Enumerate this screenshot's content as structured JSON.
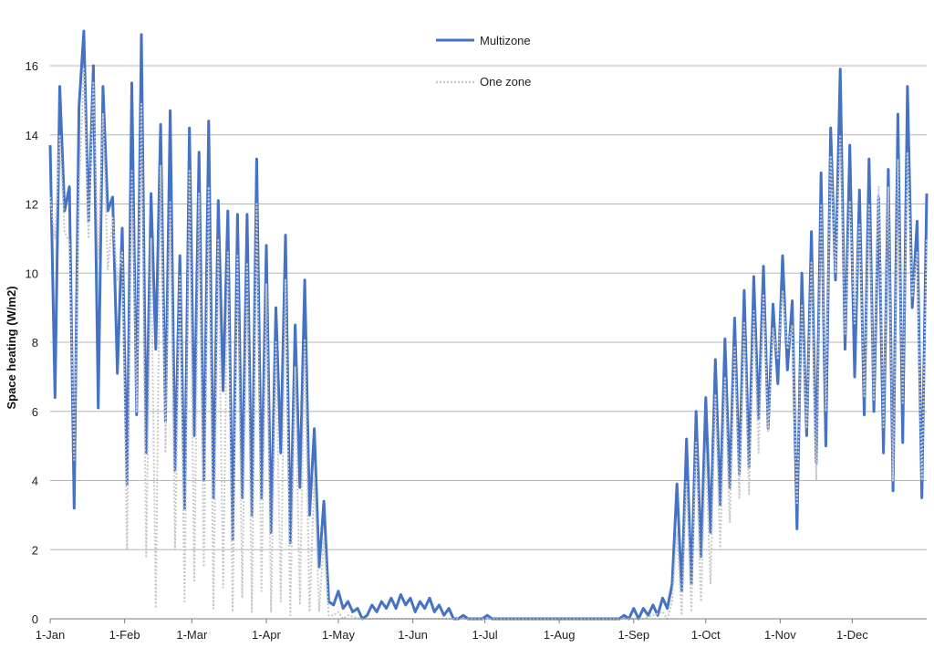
{
  "chart_data": {
    "type": "line",
    "title": "",
    "xlabel": "",
    "ylabel": "Space heating  (W/m2)",
    "ylim": [
      0,
      16
    ],
    "y_ticks": [
      "0",
      "2",
      "4",
      "6",
      "8",
      "10",
      "12",
      "14",
      "16"
    ],
    "x_ticks": [
      "1-Jan",
      "1-Feb",
      "1-Mar",
      "1-Apr",
      "1-May",
      "1-Jun",
      "1-Jul",
      "1-Aug",
      "1-Sep",
      "1-Oct",
      "1-Nov",
      "1-Dec"
    ],
    "x_tick_days": [
      1,
      32,
      60,
      91,
      121,
      152,
      182,
      213,
      244,
      274,
      305,
      335
    ],
    "xlim_days": [
      1,
      366
    ],
    "grid": "horizontal",
    "legend_position": "top-center",
    "series": [
      {
        "name": "Multizone",
        "color": "#4472C4",
        "style": "solid",
        "points": [
          [
            1,
            13.7
          ],
          [
            3,
            6.4
          ],
          [
            5,
            15.4
          ],
          [
            7,
            11.8
          ],
          [
            9,
            12.5
          ],
          [
            11,
            3.2
          ],
          [
            13,
            14.8
          ],
          [
            15,
            17.0
          ],
          [
            17,
            11.5
          ],
          [
            19,
            16.0
          ],
          [
            21,
            6.1
          ],
          [
            23,
            15.4
          ],
          [
            25,
            11.8
          ],
          [
            27,
            12.2
          ],
          [
            29,
            7.1
          ],
          [
            31,
            11.3
          ],
          [
            33,
            3.9
          ],
          [
            35,
            15.5
          ],
          [
            37,
            5.9
          ],
          [
            39,
            16.9
          ],
          [
            41,
            4.8
          ],
          [
            43,
            12.3
          ],
          [
            45,
            7.8
          ],
          [
            47,
            14.3
          ],
          [
            49,
            5.7
          ],
          [
            51,
            14.7
          ],
          [
            53,
            4.3
          ],
          [
            55,
            10.5
          ],
          [
            57,
            3.2
          ],
          [
            59,
            14.2
          ],
          [
            61,
            5.3
          ],
          [
            63,
            13.5
          ],
          [
            65,
            4.0
          ],
          [
            67,
            14.4
          ],
          [
            69,
            3.5
          ],
          [
            71,
            12.1
          ],
          [
            73,
            6.6
          ],
          [
            75,
            11.8
          ],
          [
            77,
            2.3
          ],
          [
            79,
            11.7
          ],
          [
            81,
            3.5
          ],
          [
            83,
            11.7
          ],
          [
            85,
            3.0
          ],
          [
            87,
            13.3
          ],
          [
            89,
            3.5
          ],
          [
            91,
            10.8
          ],
          [
            93,
            2.5
          ],
          [
            95,
            9.0
          ],
          [
            97,
            4.8
          ],
          [
            99,
            11.1
          ],
          [
            101,
            2.2
          ],
          [
            103,
            8.5
          ],
          [
            105,
            3.8
          ],
          [
            107,
            9.8
          ],
          [
            109,
            3.0
          ],
          [
            111,
            5.5
          ],
          [
            113,
            1.5
          ],
          [
            115,
            3.4
          ],
          [
            117,
            0.5
          ],
          [
            119,
            0.4
          ],
          [
            121,
            0.8
          ],
          [
            123,
            0.3
          ],
          [
            125,
            0.5
          ],
          [
            127,
            0.2
          ],
          [
            129,
            0.3
          ],
          [
            131,
            0.0
          ],
          [
            133,
            0.1
          ],
          [
            135,
            0.4
          ],
          [
            137,
            0.2
          ],
          [
            139,
            0.5
          ],
          [
            141,
            0.3
          ],
          [
            143,
            0.6
          ],
          [
            145,
            0.3
          ],
          [
            147,
            0.7
          ],
          [
            149,
            0.4
          ],
          [
            151,
            0.6
          ],
          [
            153,
            0.2
          ],
          [
            155,
            0.5
          ],
          [
            157,
            0.3
          ],
          [
            159,
            0.6
          ],
          [
            161,
            0.2
          ],
          [
            163,
            0.4
          ],
          [
            165,
            0.1
          ],
          [
            167,
            0.3
          ],
          [
            169,
            0.0
          ],
          [
            171,
            0.0
          ],
          [
            173,
            0.1
          ],
          [
            175,
            0.0
          ],
          [
            177,
            0.0
          ],
          [
            179,
            0.0
          ],
          [
            181,
            0.0
          ],
          [
            183,
            0.1
          ],
          [
            185,
            0.0
          ],
          [
            190,
            0.0
          ],
          [
            200,
            0.0
          ],
          [
            210,
            0.0
          ],
          [
            220,
            0.0
          ],
          [
            230,
            0.0
          ],
          [
            238,
            0.0
          ],
          [
            240,
            0.1
          ],
          [
            242,
            0.0
          ],
          [
            244,
            0.3
          ],
          [
            246,
            0.0
          ],
          [
            248,
            0.3
          ],
          [
            250,
            0.1
          ],
          [
            252,
            0.4
          ],
          [
            254,
            0.1
          ],
          [
            256,
            0.6
          ],
          [
            258,
            0.3
          ],
          [
            260,
            1.0
          ],
          [
            262,
            3.9
          ],
          [
            264,
            0.8
          ],
          [
            266,
            5.2
          ],
          [
            268,
            1.0
          ],
          [
            270,
            6.0
          ],
          [
            272,
            1.8
          ],
          [
            274,
            6.4
          ],
          [
            276,
            2.5
          ],
          [
            278,
            7.5
          ],
          [
            280,
            3.3
          ],
          [
            282,
            8.1
          ],
          [
            284,
            3.8
          ],
          [
            286,
            8.7
          ],
          [
            288,
            4.2
          ],
          [
            290,
            9.5
          ],
          [
            292,
            4.4
          ],
          [
            294,
            9.9
          ],
          [
            296,
            5.8
          ],
          [
            298,
            10.2
          ],
          [
            300,
            5.5
          ],
          [
            302,
            9.1
          ],
          [
            304,
            6.8
          ],
          [
            306,
            10.5
          ],
          [
            308,
            7.2
          ],
          [
            310,
            9.2
          ],
          [
            312,
            2.6
          ],
          [
            314,
            10.0
          ],
          [
            316,
            5.3
          ],
          [
            318,
            11.2
          ],
          [
            320,
            4.5
          ],
          [
            322,
            12.9
          ],
          [
            324,
            5.0
          ],
          [
            326,
            14.2
          ],
          [
            328,
            9.8
          ],
          [
            330,
            15.9
          ],
          [
            332,
            7.8
          ],
          [
            334,
            13.7
          ],
          [
            336,
            7.0
          ],
          [
            338,
            12.4
          ],
          [
            340,
            5.9
          ],
          [
            342,
            13.3
          ],
          [
            344,
            6.0
          ],
          [
            346,
            12.2
          ],
          [
            348,
            4.8
          ],
          [
            350,
            13.0
          ],
          [
            352,
            3.7
          ],
          [
            354,
            14.6
          ],
          [
            356,
            5.1
          ],
          [
            358,
            15.4
          ],
          [
            360,
            9.0
          ],
          [
            362,
            11.5
          ],
          [
            364,
            3.5
          ],
          [
            366,
            12.3
          ]
        ]
      },
      {
        "name": "One zone",
        "color": "#C8C8C8",
        "style": "dotted",
        "points": [
          [
            1,
            12.2
          ],
          [
            3,
            11.0
          ],
          [
            5,
            14.0
          ],
          [
            7,
            11.2
          ],
          [
            9,
            10.9
          ],
          [
            11,
            4.6
          ],
          [
            13,
            12.4
          ],
          [
            15,
            15.9
          ],
          [
            17,
            11.0
          ],
          [
            19,
            15.5
          ],
          [
            21,
            10.4
          ],
          [
            23,
            14.6
          ],
          [
            25,
            10.1
          ],
          [
            27,
            11.6
          ],
          [
            29,
            9.8
          ],
          [
            31,
            10.6
          ],
          [
            33,
            2.0
          ],
          [
            35,
            13.0
          ],
          [
            37,
            6.0
          ],
          [
            39,
            14.9
          ],
          [
            41,
            1.8
          ],
          [
            43,
            11.0
          ],
          [
            45,
            0.3
          ],
          [
            47,
            13.1
          ],
          [
            49,
            4.8
          ],
          [
            51,
            12.1
          ],
          [
            53,
            2.0
          ],
          [
            55,
            9.9
          ],
          [
            57,
            0.5
          ],
          [
            59,
            13.0
          ],
          [
            61,
            1.1
          ],
          [
            63,
            12.3
          ],
          [
            65,
            1.5
          ],
          [
            67,
            12.5
          ],
          [
            69,
            0.3
          ],
          [
            71,
            11.0
          ],
          [
            73,
            0.9
          ],
          [
            75,
            10.6
          ],
          [
            77,
            0.2
          ],
          [
            79,
            10.5
          ],
          [
            81,
            0.6
          ],
          [
            83,
            10.3
          ],
          [
            85,
            0.2
          ],
          [
            87,
            12.0
          ],
          [
            89,
            0.8
          ],
          [
            91,
            9.7
          ],
          [
            93,
            0.2
          ],
          [
            95,
            8.0
          ],
          [
            97,
            0.5
          ],
          [
            99,
            9.8
          ],
          [
            101,
            0.1
          ],
          [
            103,
            7.3
          ],
          [
            105,
            0.4
          ],
          [
            107,
            8.1
          ],
          [
            109,
            0.2
          ],
          [
            111,
            4.1
          ],
          [
            113,
            0.2
          ],
          [
            115,
            2.3
          ],
          [
            117,
            0.1
          ],
          [
            119,
            0.1
          ],
          [
            121,
            0.2
          ],
          [
            123,
            0.0
          ],
          [
            125,
            0.1
          ],
          [
            130,
            0.0
          ],
          [
            140,
            0.0
          ],
          [
            150,
            0.0
          ],
          [
            160,
            0.0
          ],
          [
            170,
            0.0
          ],
          [
            180,
            0.0
          ],
          [
            190,
            0.0
          ],
          [
            200,
            0.0
          ],
          [
            210,
            0.0
          ],
          [
            220,
            0.0
          ],
          [
            230,
            0.0
          ],
          [
            240,
            0.0
          ],
          [
            248,
            0.0
          ],
          [
            252,
            0.1
          ],
          [
            256,
            0.2
          ],
          [
            258,
            0.0
          ],
          [
            260,
            0.5
          ],
          [
            262,
            2.5
          ],
          [
            264,
            0.1
          ],
          [
            266,
            4.0
          ],
          [
            268,
            0.2
          ],
          [
            270,
            5.1
          ],
          [
            272,
            0.5
          ],
          [
            274,
            4.8
          ],
          [
            276,
            1.0
          ],
          [
            278,
            6.5
          ],
          [
            280,
            2.0
          ],
          [
            282,
            7.0
          ],
          [
            284,
            2.8
          ],
          [
            286,
            7.9
          ],
          [
            288,
            3.5
          ],
          [
            290,
            8.6
          ],
          [
            292,
            3.6
          ],
          [
            294,
            8.9
          ],
          [
            296,
            4.8
          ],
          [
            298,
            9.4
          ],
          [
            300,
            5.4
          ],
          [
            302,
            8.4
          ],
          [
            304,
            7.5
          ],
          [
            306,
            9.5
          ],
          [
            308,
            7.8
          ],
          [
            310,
            8.5
          ],
          [
            312,
            3.3
          ],
          [
            314,
            9.1
          ],
          [
            316,
            5.5
          ],
          [
            318,
            10.3
          ],
          [
            320,
            4.0
          ],
          [
            322,
            12.0
          ],
          [
            324,
            6.0
          ],
          [
            326,
            13.4
          ],
          [
            328,
            10.0
          ],
          [
            330,
            14.0
          ],
          [
            332,
            8.2
          ],
          [
            334,
            12.1
          ],
          [
            336,
            8.5
          ],
          [
            338,
            11.4
          ],
          [
            340,
            6.4
          ],
          [
            342,
            12.0
          ],
          [
            344,
            6.3
          ],
          [
            346,
            12.5
          ],
          [
            348,
            5.5
          ],
          [
            350,
            12.5
          ],
          [
            352,
            4.0
          ],
          [
            354,
            13.3
          ],
          [
            356,
            6.2
          ],
          [
            358,
            13.5
          ],
          [
            360,
            9.3
          ],
          [
            362,
            10.6
          ],
          [
            364,
            4.0
          ],
          [
            366,
            11.0
          ]
        ]
      }
    ]
  }
}
